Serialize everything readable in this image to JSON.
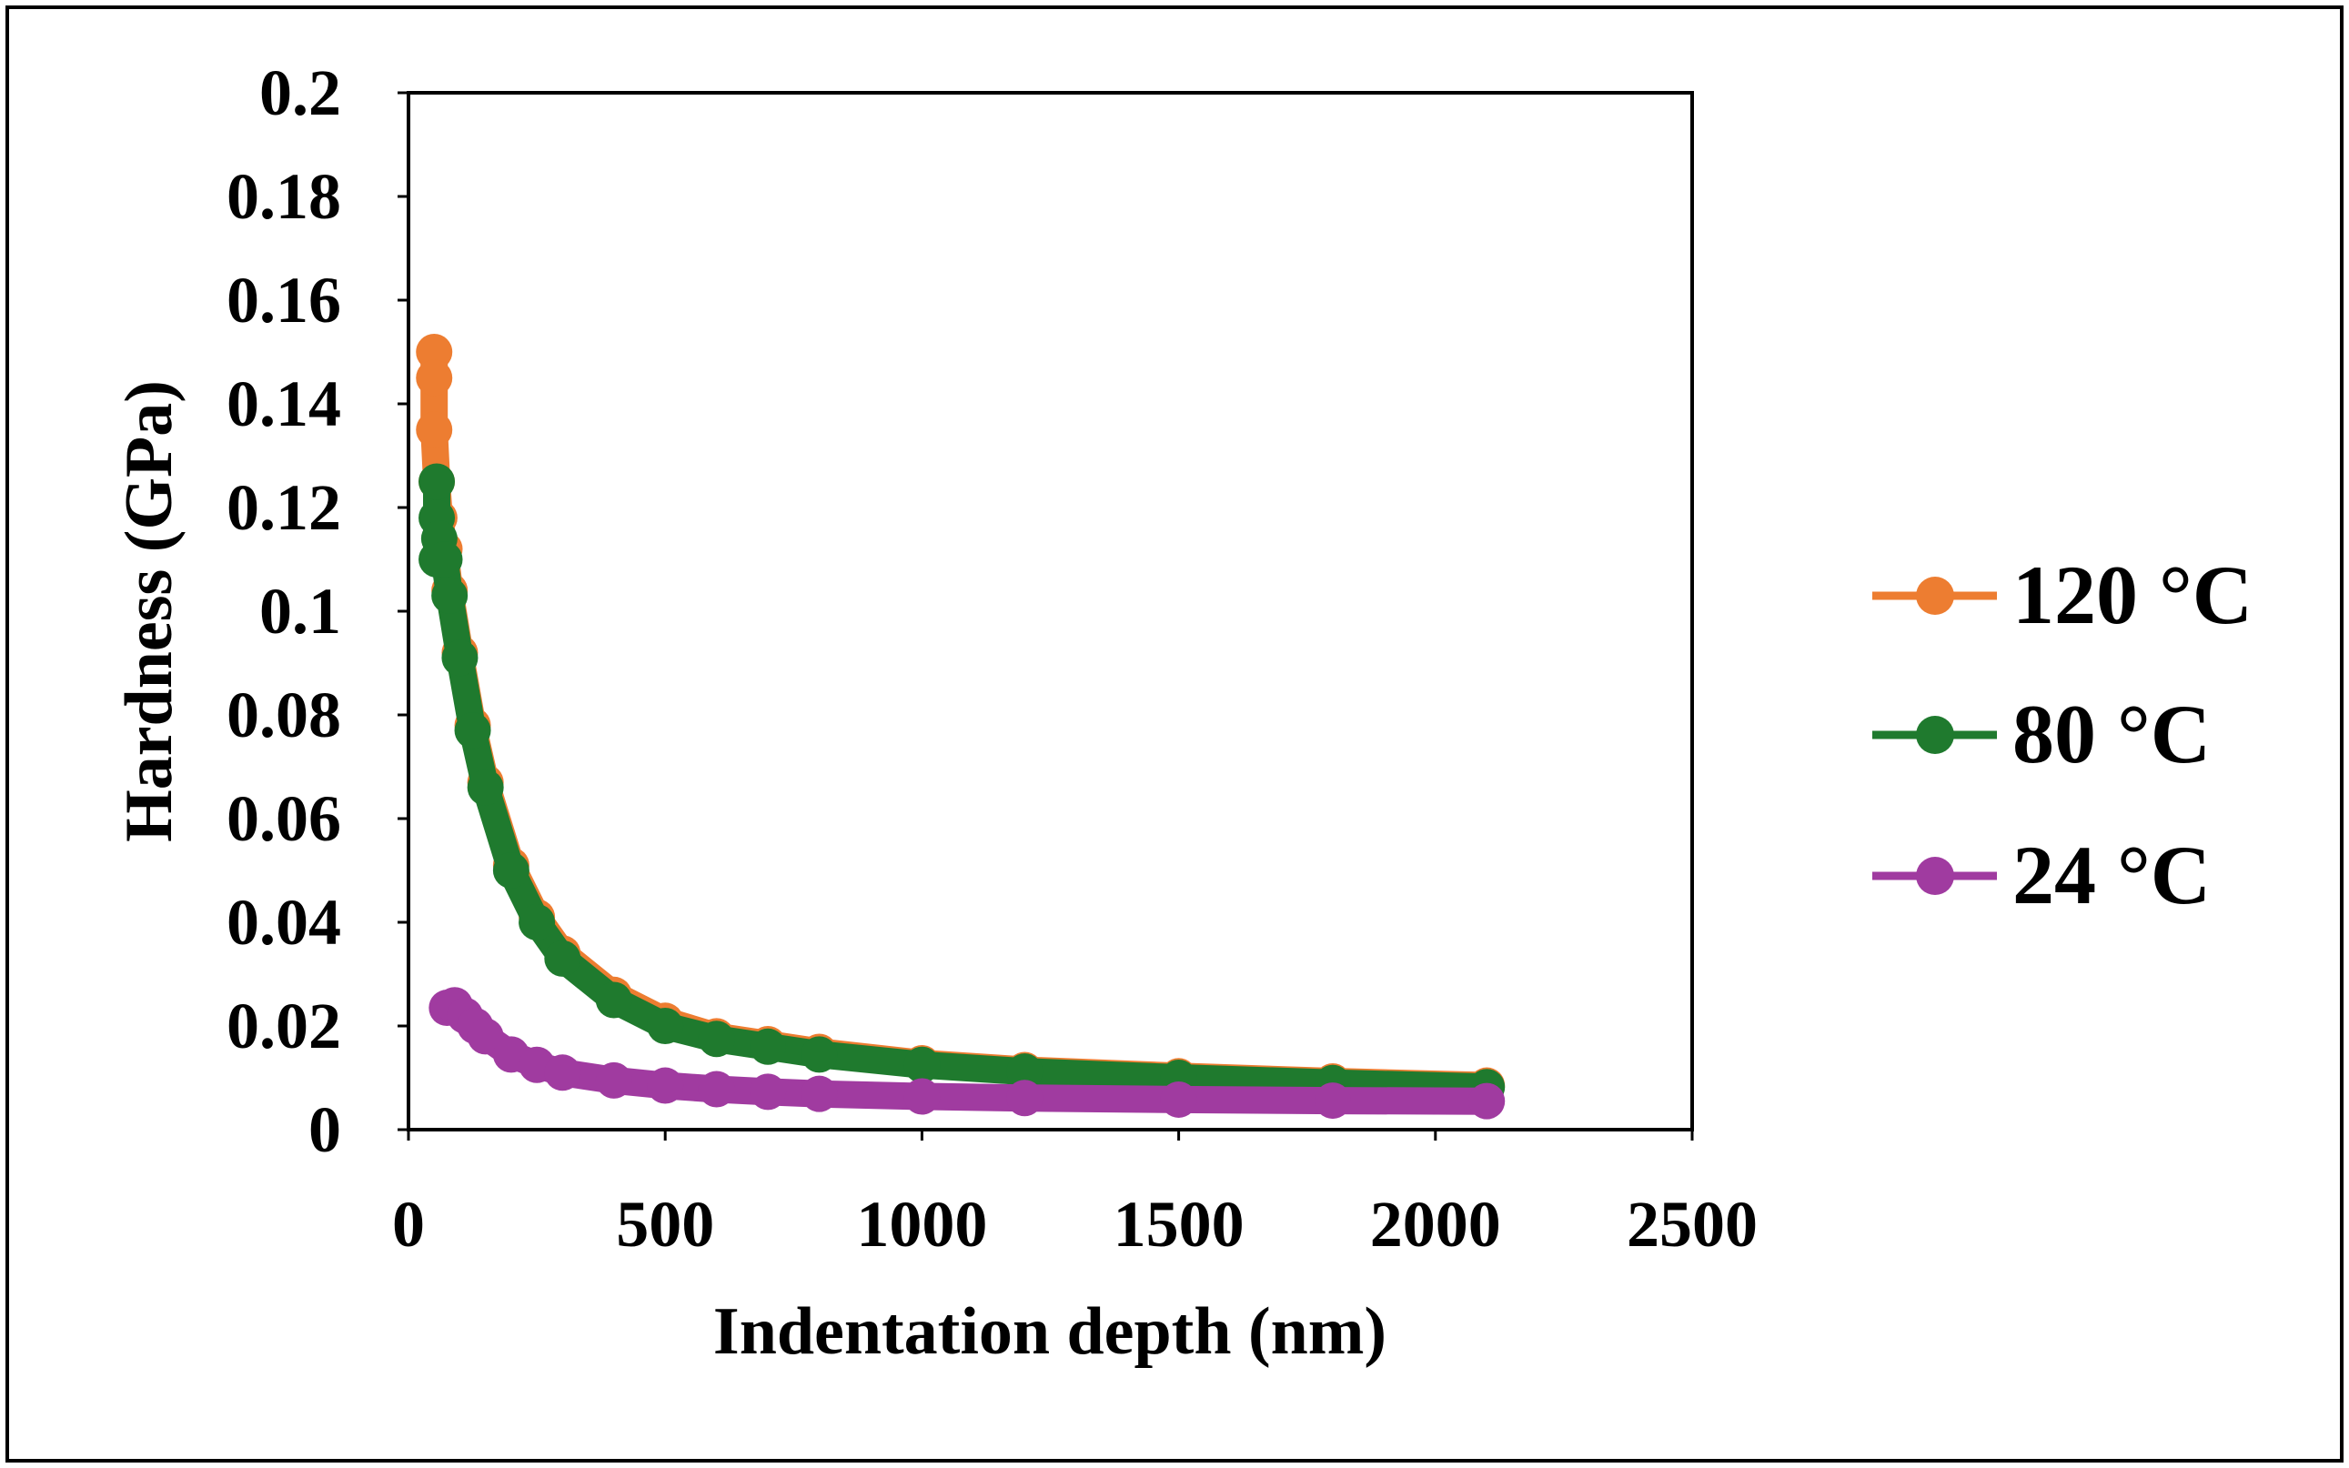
{
  "chart_data": {
    "type": "line",
    "title": "",
    "xlabel": "Indentation depth (nm)",
    "ylabel": "Hardness (GPa)",
    "xlim": [
      0,
      2500
    ],
    "ylim": [
      0,
      0.2
    ],
    "x_ticks": [
      "0",
      "500",
      "1000",
      "1500",
      "2000",
      "2500"
    ],
    "y_ticks": [
      "0",
      "0.02",
      "0.04",
      "0.06",
      "0.08",
      "0.1",
      "0.12",
      "0.14",
      "0.16",
      "0.18",
      "0.2"
    ],
    "grid": false,
    "legend_position": "right",
    "series": [
      {
        "name": "120 °C",
        "color": "#ED7D31",
        "x": [
          50,
          50,
          50,
          55,
          60,
          70,
          80,
          100,
          125,
          150,
          200,
          250,
          300,
          400,
          500,
          600,
          700,
          800,
          1000,
          1200,
          1500,
          1800,
          2100
        ],
        "y": [
          0.15,
          0.145,
          0.135,
          0.125,
          0.118,
          0.112,
          0.104,
          0.092,
          0.078,
          0.067,
          0.051,
          0.041,
          0.034,
          0.026,
          0.021,
          0.018,
          0.0165,
          0.015,
          0.0128,
          0.0115,
          0.0103,
          0.0093,
          0.0085
        ]
      },
      {
        "name": "80 °C",
        "color": "#1F7A2E",
        "x": [
          55,
          55,
          55,
          60,
          70,
          80,
          100,
          125,
          150,
          200,
          250,
          300,
          400,
          500,
          600,
          700,
          800,
          1000,
          1200,
          1500,
          1800,
          2100
        ],
        "y": [
          0.125,
          0.118,
          0.11,
          0.114,
          0.11,
          0.103,
          0.091,
          0.077,
          0.066,
          0.05,
          0.04,
          0.033,
          0.025,
          0.02,
          0.0175,
          0.016,
          0.0145,
          0.0125,
          0.0112,
          0.01,
          0.009,
          0.0082
        ]
      },
      {
        "name": "24 °C",
        "color": "#A03BA0",
        "x": [
          75,
          90,
          110,
          130,
          150,
          200,
          250,
          300,
          400,
          500,
          600,
          700,
          800,
          1000,
          1200,
          1500,
          1800,
          2100
        ],
        "y": [
          0.0235,
          0.024,
          0.022,
          0.02,
          0.018,
          0.0145,
          0.0125,
          0.011,
          0.0095,
          0.0085,
          0.0078,
          0.0073,
          0.0069,
          0.0064,
          0.0061,
          0.0058,
          0.0056,
          0.0055
        ]
      }
    ]
  }
}
